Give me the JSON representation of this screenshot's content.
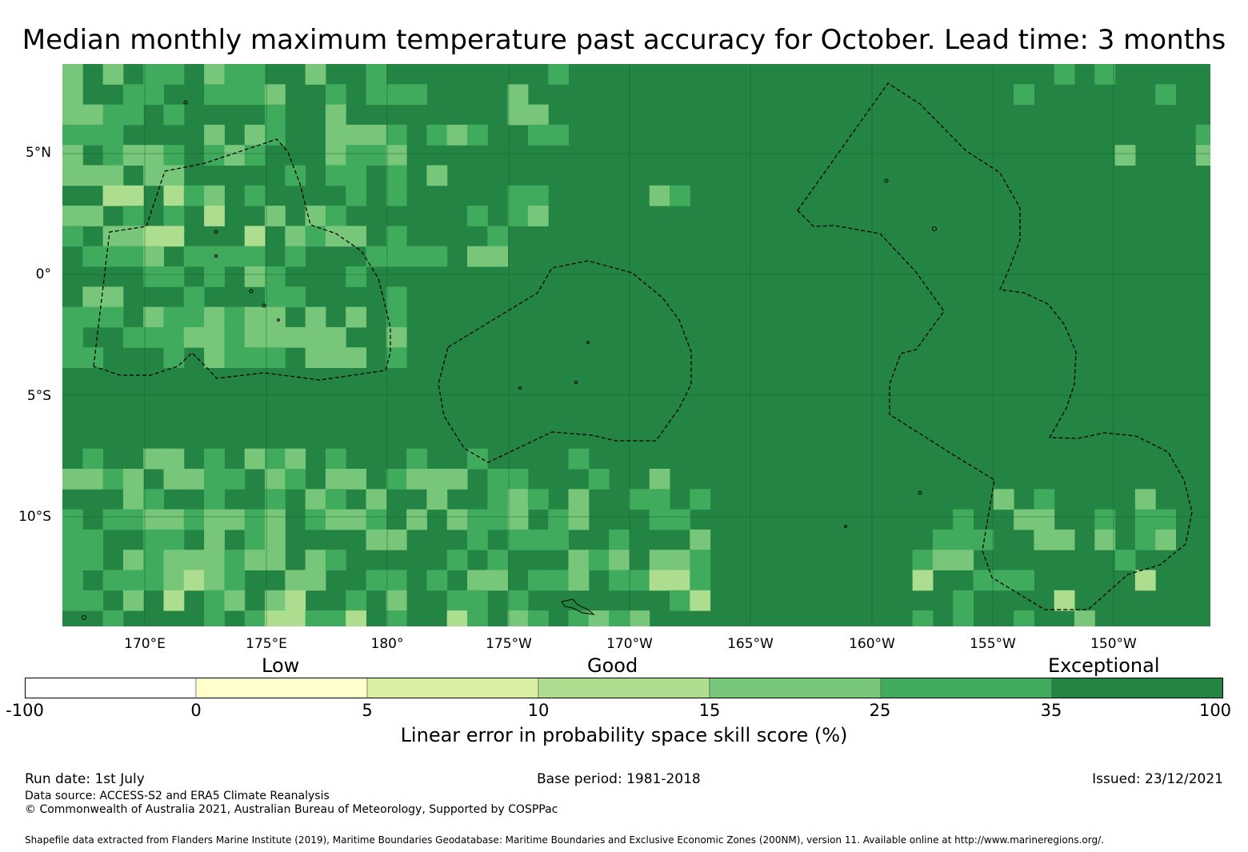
{
  "title": "Median monthly maximum temperature past accuracy for October. Lead time: 3 months",
  "map": {
    "lat_labels": [
      "5°N",
      "0°",
      "5°S",
      "10°S"
    ],
    "lon_labels": [
      "170°E",
      "175°E",
      "180°",
      "175°W",
      "170°W",
      "165°W",
      "160°W",
      "155°W",
      "150°W"
    ],
    "colors": {
      "ocean_base": "#238443",
      "skill_25_35": "#41ab5d",
      "skill_15_25": "#78c679",
      "skill_10_15": "#addd8e",
      "grid_line": "#1a5e30",
      "eez_line": "#000000"
    }
  },
  "legend": {
    "categories": [
      "Low",
      "Good",
      "Exceptional"
    ],
    "ticks": [
      "-100",
      "0",
      "5",
      "10",
      "15",
      "25",
      "35",
      "100"
    ],
    "colors": [
      "#ffffff",
      "#ffffcc",
      "#d9f0a3",
      "#addd8e",
      "#78c679",
      "#41ab5d",
      "#238443"
    ],
    "title": "Linear error in probability space skill score (%)"
  },
  "footer": {
    "run_date": "Run date: 1st July",
    "base_period": "Base period: 1981-2018",
    "issued": "Issued: 23/12/2021",
    "data_source": "Data source: ACCESS-S2 and ERA5 Climate Reanalysis",
    "copyright": "© Commonwealth of Australia 2021, Australian Bureau of Meteorology, Supported by COSPPac",
    "shapefile": "Shapefile data extracted from Flanders Marine Institute (2019), Maritime Boundaries Geodatabase: Maritime Boundaries and Exclusive Economic Zones (200NM), version 11. Available online at http://www.marineregions.org/."
  }
}
